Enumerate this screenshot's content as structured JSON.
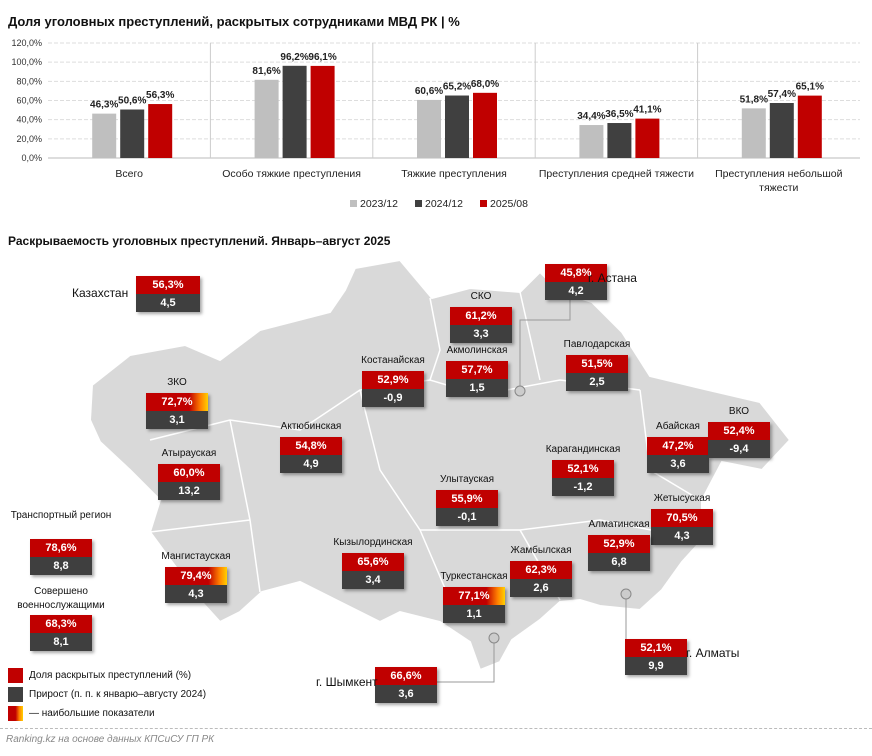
{
  "chart_title": "Доля уголовных преступлений, раскрытых сотрудниками МВД РК | %",
  "chart_data": {
    "type": "bar",
    "title": "Доля уголовных преступлений, раскрытых сотрудниками МВД РК | %",
    "categories": [
      "Всего",
      "Особо тяжкие преступления",
      "Тяжкие преступления",
      "Преступления средней тяжести",
      "Преступления небольшой тяжести"
    ],
    "series": [
      {
        "name": "2023/12",
        "color": "#bfbfbf",
        "values": [
          46.3,
          81.6,
          60.6,
          34.4,
          51.8
        ],
        "labels": [
          "46,3%",
          "81,6%",
          "60,6%",
          "34,4%",
          "51,8%"
        ]
      },
      {
        "name": "2024/12",
        "color": "#404040",
        "values": [
          50.6,
          96.2,
          65.2,
          36.5,
          57.4
        ],
        "labels": [
          "50,6%",
          "96,2%",
          "65,2%",
          "36,5%",
          "57,4%"
        ]
      },
      {
        "name": "2025/08",
        "color": "#c00000",
        "values": [
          56.3,
          96.1,
          68.0,
          41.1,
          65.1
        ],
        "labels": [
          "56,3%",
          "96,1%",
          "68,0%",
          "41,1%",
          "65,1%"
        ]
      }
    ],
    "ylim": [
      0,
      120
    ],
    "yticks": [
      "0,0%",
      "20,0%",
      "40,0%",
      "60,0%",
      "80,0%",
      "100,0%",
      "120,0%"
    ],
    "legend": "bottom"
  },
  "map_title": "Раскрываемость уголовных преступлений. Январь–август 2025",
  "regions": [
    {
      "id": "kz",
      "name": "Казахстан",
      "pct": "56,3%",
      "delta": "4,5"
    },
    {
      "id": "astana",
      "name": "г. Астана",
      "pct": "45,8%",
      "delta": "4,2"
    },
    {
      "id": "sko",
      "name": "СКО",
      "pct": "61,2%",
      "delta": "3,3"
    },
    {
      "id": "kost",
      "name": "Костанайская",
      "pct": "52,9%",
      "delta": "-0,9"
    },
    {
      "id": "akm",
      "name": "Акмолинская",
      "pct": "57,7%",
      "delta": "1,5"
    },
    {
      "id": "pav",
      "name": "Павлодарская",
      "pct": "51,5%",
      "delta": "2,5"
    },
    {
      "id": "zko",
      "name": "ЗКО",
      "pct": "72,7%",
      "delta": "3,1",
      "top": true
    },
    {
      "id": "akt",
      "name": "Актюбинская",
      "pct": "54,8%",
      "delta": "4,9"
    },
    {
      "id": "aba",
      "name": "Абайская",
      "pct": "47,2%",
      "delta": "3,6"
    },
    {
      "id": "vko",
      "name": "ВКО",
      "pct": "52,4%",
      "delta": "-9,4"
    },
    {
      "id": "aty",
      "name": "Атырауская",
      "pct": "60,0%",
      "delta": "13,2"
    },
    {
      "id": "kar",
      "name": "Карагандинская",
      "pct": "52,1%",
      "delta": "-1,2"
    },
    {
      "id": "uly",
      "name": "Улытауская",
      "pct": "55,9%",
      "delta": "-0,1"
    },
    {
      "id": "zhe",
      "name": "Жетысуская",
      "pct": "70,5%",
      "delta": "4,3"
    },
    {
      "id": "trans",
      "name": "Транспортный регион",
      "pct": "78,6%",
      "delta": "8,8"
    },
    {
      "id": "man",
      "name": "Мангистауская",
      "pct": "79,4%",
      "delta": "4,3",
      "top": true
    },
    {
      "id": "kyz",
      "name": "Кызылординская",
      "pct": "65,6%",
      "delta": "3,4"
    },
    {
      "id": "alm",
      "name": "Алматинская",
      "pct": "52,9%",
      "delta": "6,8"
    },
    {
      "id": "zham",
      "name": "Жамбылская",
      "pct": "62,3%",
      "delta": "2,6"
    },
    {
      "id": "tur",
      "name": "Туркестанская",
      "pct": "77,1%",
      "delta": "1,1",
      "top": true
    },
    {
      "id": "mil",
      "name": "Совершено военнослужащими",
      "pct": "68,3%",
      "delta": "8,1"
    },
    {
      "id": "almaty",
      "name": "г. Алматы",
      "pct": "52,1%",
      "delta": "9,9"
    },
    {
      "id": "shym",
      "name": "г. Шымкент",
      "pct": "66,6%",
      "delta": "3,6"
    }
  ],
  "legend": {
    "share": "Доля раскрытых преступлений (%)",
    "growth": "Прирост (п. п. к январю–августу 2024)",
    "top": "— наибольшие показатели"
  },
  "source": "Ranking.kz на основе данных КПСиСУ ГП РК"
}
